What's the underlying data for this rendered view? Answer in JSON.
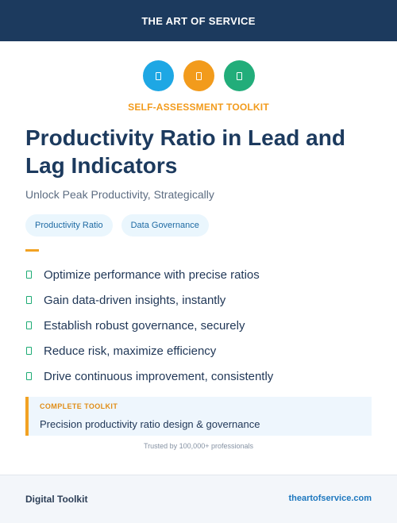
{
  "header": {
    "brand": "THE ART OF SERVICE"
  },
  "icons": [
    {
      "name": "square-icon",
      "color": "#1ea7e4"
    },
    {
      "name": "square-icon",
      "color": "#f29b1c"
    },
    {
      "name": "square-icon",
      "color": "#22ad7a"
    }
  ],
  "kicker": {
    "text": "SELF-ASSESSMENT TOOLKIT",
    "color": "#f29b1c"
  },
  "title": "Productivity Ratio in Lead and Lag Indicators",
  "subtitle": "Unlock Peak Productivity, Strategically",
  "tags": [
    "Productivity Ratio",
    "Data Governance"
  ],
  "benefits": [
    "Optimize performance with precise ratios",
    "Gain data-driven insights, instantly",
    "Establish robust governance, securely",
    "Reduce risk, maximize efficiency",
    "Drive continuous improvement, consistently"
  ],
  "callout": {
    "title": "COMPLETE TOOLKIT",
    "text": "Precision productivity ratio design & governance"
  },
  "trusted": "Trusted by 100,000+ professionals",
  "footer": {
    "left": "Digital Toolkit",
    "right": "theartofservice.com"
  }
}
